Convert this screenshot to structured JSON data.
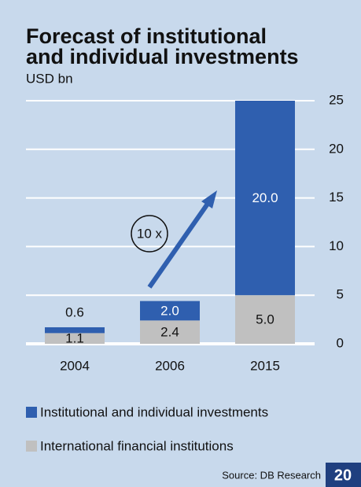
{
  "chart_data": {
    "type": "bar",
    "stacked": true,
    "title": [
      "Forecast of institutional",
      "and individual investments"
    ],
    "subtitle": "USD bn",
    "categories": [
      "2004",
      "2006",
      "2015"
    ],
    "series": [
      {
        "name": "International financial institutions",
        "color": "#c0c0c0",
        "values": [
          1.1,
          2.4,
          5.0
        ],
        "value_labels": [
          "1.1",
          "2.4",
          "5.0"
        ]
      },
      {
        "name": "Institutional and individual investments",
        "color": "#2f5faf",
        "values": [
          0.6,
          2.0,
          20.0
        ],
        "value_labels": [
          "0.6",
          "2.0",
          "20.0"
        ]
      }
    ],
    "ylim": [
      0,
      25
    ],
    "yticks": [
      0,
      5,
      10,
      15,
      20,
      25
    ],
    "grid": true,
    "annotation": "10 x",
    "source": "Source: DB Research"
  },
  "page_number": "20"
}
